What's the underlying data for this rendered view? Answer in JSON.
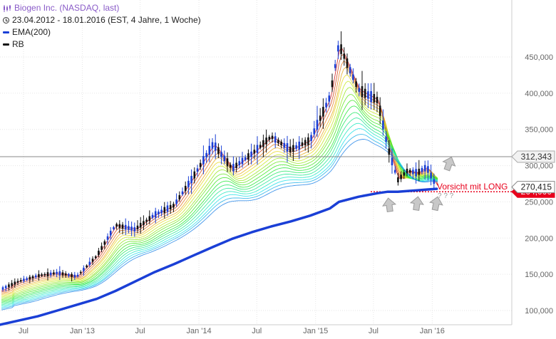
{
  "header": {
    "title": "Biogen Inc. (NASDAQ, last)",
    "period": "23.04.2012 - 18.01.2016 (EST, 4 Jahre, 1 Woche)",
    "legend": [
      {
        "label": "EMA(200)",
        "color": "#1a3fd6"
      },
      {
        "label": "RB",
        "color": "#111111"
      }
    ]
  },
  "annotation": {
    "text": "Vorsicht mit LONG",
    "color": "#e8001c",
    "marks": "? ? ?"
  },
  "price_tags": {
    "current": "270,415",
    "horizontal_line": "312,343",
    "support": "264,000"
  },
  "chart_data": {
    "type": "line",
    "title": "Biogen Inc. (NASDAQ, last)",
    "xlabel": "",
    "ylabel": "",
    "ylim": [
      75000,
      480000
    ],
    "y_ticks": [
      {
        "value": 450000,
        "label": "450,000"
      },
      {
        "value": 400000,
        "label": "400,000"
      },
      {
        "value": 350000,
        "label": "350,000"
      },
      {
        "value": 300000,
        "label": "300,000"
      },
      {
        "value": 250000,
        "label": "250,000"
      },
      {
        "value": 200000,
        "label": "200,000"
      },
      {
        "value": 150000,
        "label": "150,000"
      },
      {
        "value": 100000,
        "label": "100,000"
      }
    ],
    "x_ticks": [
      {
        "date": "2012-07",
        "label": "Jul"
      },
      {
        "date": "2013-01",
        "label": "Jan '13"
      },
      {
        "date": "2013-07",
        "label": "Jul"
      },
      {
        "date": "2014-01",
        "label": "Jan '14"
      },
      {
        "date": "2014-07",
        "label": "Jul"
      },
      {
        "date": "2015-01",
        "label": "Jan '15"
      },
      {
        "date": "2015-07",
        "label": "Jul"
      },
      {
        "date": "2016-01",
        "label": "Jan '16"
      }
    ],
    "x": [
      "2012-04",
      "2012-06",
      "2012-08",
      "2012-10",
      "2012-12",
      "2013-02",
      "2013-04",
      "2013-06",
      "2013-08",
      "2013-10",
      "2013-12",
      "2014-02",
      "2014-04",
      "2014-06",
      "2014-08",
      "2014-10",
      "2014-12",
      "2015-02",
      "2015-03",
      "2015-05",
      "2015-07",
      "2015-08",
      "2015-09",
      "2015-10",
      "2015-11",
      "2015-12",
      "2016-01"
    ],
    "series": [
      {
        "name": "Biogen Inc.",
        "color": "#111111",
        "values": [
          128000,
          140000,
          148000,
          152000,
          147000,
          175000,
          218000,
          212000,
          232000,
          245000,
          285000,
          330000,
          296000,
          316000,
          340000,
          322000,
          335000,
          395000,
          468000,
          405000,
          390000,
          325000,
          280000,
          293000,
          290000,
          298000,
          270415
        ]
      },
      {
        "name": "EMA(200)",
        "color": "#1a3fd6",
        "values": [
          80000,
          86000,
          92000,
          100000,
          108000,
          116000,
          127000,
          140000,
          153000,
          164000,
          176000,
          188000,
          199000,
          208000,
          216000,
          223000,
          231000,
          241000,
          250000,
          257000,
          262000,
          264000,
          264000,
          265000,
          266000,
          267000,
          268000
        ]
      }
    ],
    "horizontal_lines": [
      {
        "value": 312343,
        "color": "#888888"
      },
      {
        "value": 264000,
        "color": "#e8001c",
        "style": "dotted"
      }
    ],
    "grid": true,
    "legend": "top-left"
  }
}
